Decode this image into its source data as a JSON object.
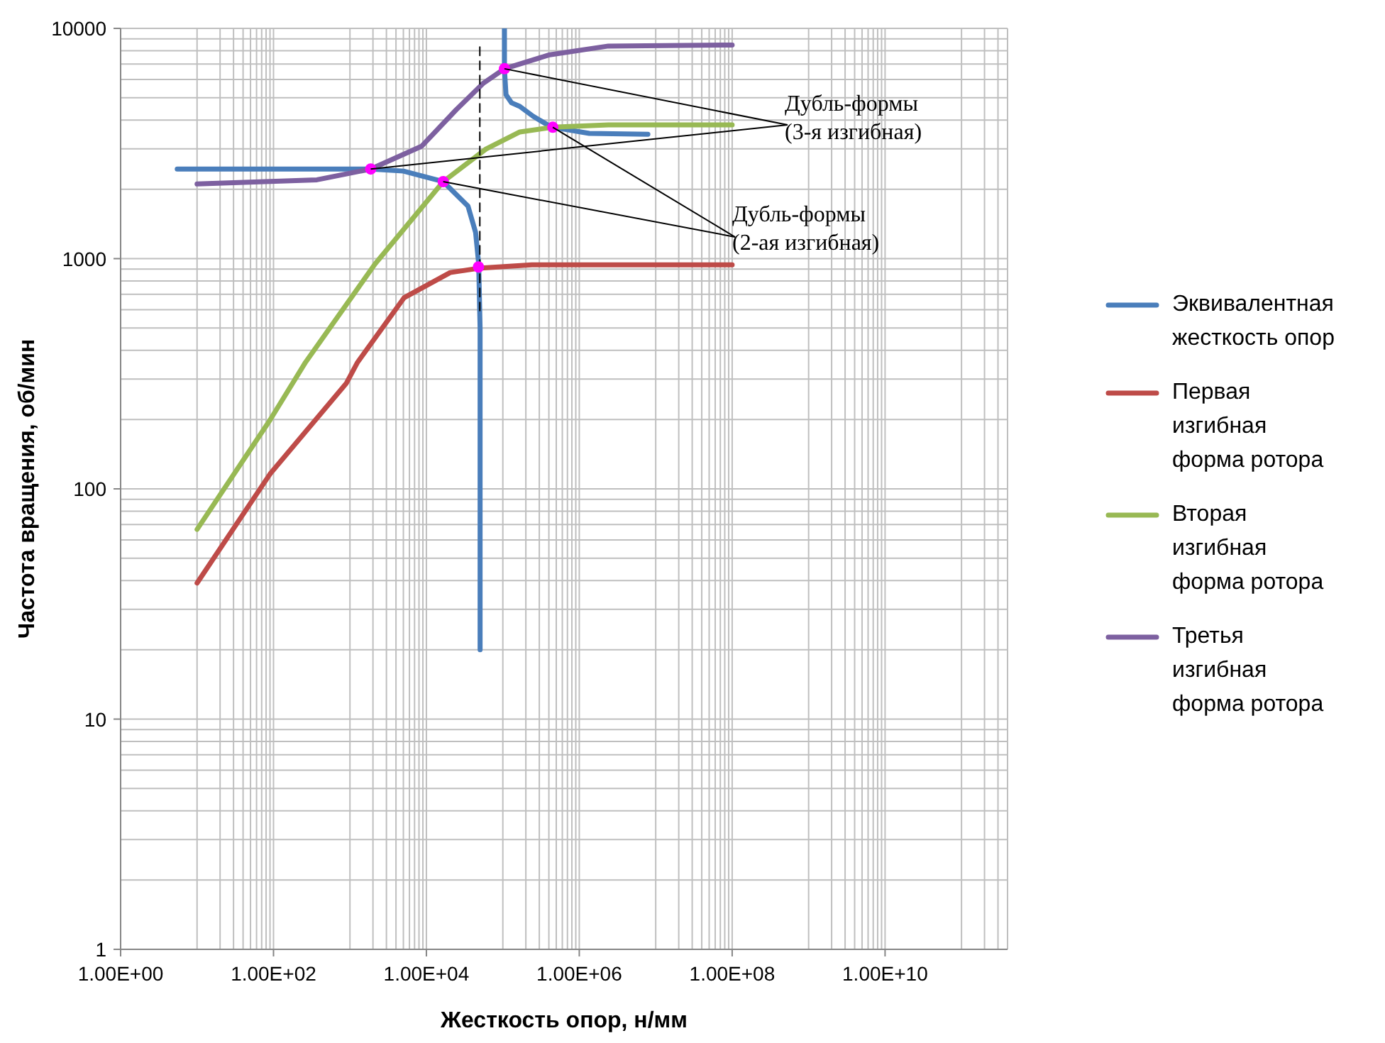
{
  "chart_data": {
    "type": "line",
    "xlabel": "Жесткость опор, н/мм",
    "ylabel": "Частота вращения, об/мин",
    "log": "xy",
    "grid": true,
    "legend": "right",
    "xlim": [
      1,
      400000000000.0
    ],
    "ylim": [
      1,
      10000
    ],
    "xticks": [
      {
        "value": 1,
        "label": "1.00E+00"
      },
      {
        "value": 10,
        "label": null
      },
      {
        "value": 20,
        "label": null
      },
      {
        "value": 30,
        "label": null
      },
      {
        "value": 40,
        "label": null
      },
      {
        "value": 50,
        "label": null
      },
      {
        "value": 60,
        "label": null
      },
      {
        "value": 70,
        "label": null
      },
      {
        "value": 80,
        "label": null
      },
      {
        "value": 90,
        "label": null
      },
      {
        "value": 100,
        "label": "1.00E+02"
      },
      {
        "value": 1000,
        "label": null
      },
      {
        "value": 2000,
        "label": null
      },
      {
        "value": 3000,
        "label": null
      },
      {
        "value": 4000,
        "label": null
      },
      {
        "value": 5000,
        "label": null
      },
      {
        "value": 6000,
        "label": null
      },
      {
        "value": 7000,
        "label": null
      },
      {
        "value": 8000,
        "label": null
      },
      {
        "value": 9000,
        "label": null
      },
      {
        "value": 10000,
        "label": "1.00E+04"
      },
      {
        "value": 100000.0,
        "label": null
      },
      {
        "value": 200000.0,
        "label": null
      },
      {
        "value": 300000.0,
        "label": null
      },
      {
        "value": 400000.0,
        "label": null
      },
      {
        "value": 500000.0,
        "label": null
      },
      {
        "value": 600000.0,
        "label": null
      },
      {
        "value": 700000.0,
        "label": null
      },
      {
        "value": 800000.0,
        "label": null
      },
      {
        "value": 900000.0,
        "label": null
      },
      {
        "value": 1000000.0,
        "label": "1.00E+06"
      },
      {
        "value": 10000000.0,
        "label": null
      },
      {
        "value": 20000000.0,
        "label": null
      },
      {
        "value": 30000000.0,
        "label": null
      },
      {
        "value": 40000000.0,
        "label": null
      },
      {
        "value": 50000000.0,
        "label": null
      },
      {
        "value": 60000000.0,
        "label": null
      },
      {
        "value": 70000000.0,
        "label": null
      },
      {
        "value": 80000000.0,
        "label": null
      },
      {
        "value": 90000000.0,
        "label": null
      },
      {
        "value": 100000000.0,
        "label": "1.00E+08"
      },
      {
        "value": 1000000000.0,
        "label": null
      },
      {
        "value": 2000000000.0,
        "label": null
      },
      {
        "value": 3000000000.0,
        "label": null
      },
      {
        "value": 4000000000.0,
        "label": null
      },
      {
        "value": 5000000000.0,
        "label": null
      },
      {
        "value": 6000000000.0,
        "label": null
      },
      {
        "value": 7000000000.0,
        "label": null
      },
      {
        "value": 8000000000.0,
        "label": null
      },
      {
        "value": 9000000000.0,
        "label": null
      },
      {
        "value": 10000000000.0,
        "label": "1.00E+10"
      },
      {
        "value": 100000000000.0,
        "label": null
      },
      {
        "value": 200000000000.0,
        "label": null
      },
      {
        "value": 300000000000.0,
        "label": null
      }
    ],
    "yticks": [
      1,
      {
        "value": 2,
        "label": null
      },
      {
        "value": 3,
        "label": null
      },
      {
        "value": 4,
        "label": null
      },
      {
        "value": 5,
        "label": null
      },
      {
        "value": 6,
        "label": null
      },
      {
        "value": 7,
        "label": null
      },
      {
        "value": 8,
        "label": null
      },
      {
        "value": 9,
        "label": null
      },
      10,
      {
        "value": 20,
        "label": null
      },
      {
        "value": 30,
        "label": null
      },
      {
        "value": 40,
        "label": null
      },
      {
        "value": 50,
        "label": null
      },
      {
        "value": 60,
        "label": null
      },
      {
        "value": 70,
        "label": null
      },
      {
        "value": 80,
        "label": null
      },
      {
        "value": 90,
        "label": null
      },
      100,
      {
        "value": 200,
        "label": null
      },
      {
        "value": 300,
        "label": null
      },
      {
        "value": 400,
        "label": null
      },
      {
        "value": 500,
        "label": null
      },
      {
        "value": 600,
        "label": null
      },
      {
        "value": 700,
        "label": null
      },
      {
        "value": 800,
        "label": null
      },
      {
        "value": 900,
        "label": null
      },
      1000,
      {
        "value": 2000,
        "label": null
      },
      {
        "value": 3000,
        "label": null
      },
      {
        "value": 4000,
        "label": null
      },
      {
        "value": 5000,
        "label": null
      },
      {
        "value": 6000,
        "label": null
      },
      {
        "value": 7000,
        "label": null
      },
      {
        "value": 8000,
        "label": null
      },
      {
        "value": 9000,
        "label": null
      },
      10000
    ],
    "series": [
      {
        "name": "Эквивалентная жесткость опор",
        "color": "#4a7ebb",
        "x": [
          5.5,
          100,
          1000,
          1870,
          5000,
          16600,
          35000,
          44000,
          48300,
          50400,
          50400,
          70000,
          105000,
          105000,
          110000,
          130000,
          167000,
          250000,
          380000,
          450000,
          1350000,
          7900000
        ],
        "values": [
          2450,
          2450,
          2450,
          2450,
          2400,
          2160,
          1690,
          1300,
          948,
          500,
          20,
          null,
          10000,
          6630,
          5150,
          4750,
          4580,
          4150,
          3820,
          3720,
          3500,
          3470
        ]
      },
      {
        "name": "Первая изгибная форма ротора",
        "color": "#be4b48",
        "x": [
          10,
          90,
          900,
          1260,
          5100,
          20500,
          48300,
          240000,
          100000000.0
        ],
        "values": [
          39,
          116,
          288,
          355,
          676,
          870,
          908,
          940,
          940
        ]
      },
      {
        "name": "Вторая изгибная форма ротора",
        "color": "#98b954",
        "x": [
          10,
          90,
          263,
          2130,
          16600,
          60000,
          167000,
          450000,
          2400000,
          100000000.0
        ],
        "values": [
          66.7,
          199,
          355,
          948,
          2160,
          2990,
          3550,
          3720,
          3810,
          3810
        ]
      },
      {
        "name": "Третья изгибная форма ротора",
        "color": "#7d60a0",
        "x": [
          10,
          370,
          1870,
          8700,
          24500,
          55000,
          105000,
          410000,
          2400000,
          100000000.0
        ],
        "values": [
          2110,
          2200,
          2450,
          3080,
          4430,
          5760,
          6680,
          7680,
          8380,
          8470
        ]
      },
      {
        "type": "line",
        "line_style": "dashed",
        "color": "#000000",
        "x": [
          50000,
          50000
        ],
        "values": [
          8300,
          595
        ]
      },
      {
        "type": "scatter",
        "color": "#ff00ff",
        "x": [
          1870,
          16600,
          48000,
          105000,
          450000
        ],
        "values": [
          2450,
          2160,
          920,
          6680,
          3720
        ]
      }
    ],
    "annotations": [
      {
        "text": "Дубль-формы\n(3-я изгибная)",
        "x": 105000,
        "y": 6680
      },
      {
        "text": "Дубль-формы\n(2-ая изгибная)",
        "x": 16600,
        "y": 2160
      }
    ]
  }
}
